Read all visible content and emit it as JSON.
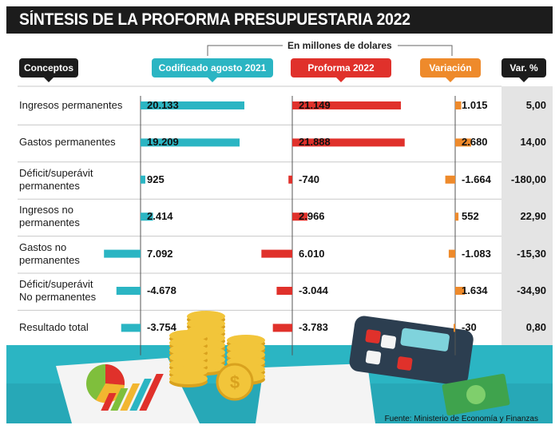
{
  "title": "SÍNTESIS DE LA PROFORMA PRESUPUESTARIA 2022",
  "subtitle": "En millones de dolares",
  "headers": {
    "concepts": "Conceptos",
    "codificado": "Codificado agosto 2021",
    "proforma": "Proforma 2022",
    "variacion": "Variación",
    "var_pct": "Var. %"
  },
  "colors": {
    "codificado": "#2bb5c3",
    "proforma": "#e0312b",
    "variacion": "#ee8a2b",
    "dark": "#1c1c1c",
    "pct_bg": "#e4e4e4",
    "illustration_bg": "#2bb5c3"
  },
  "source": "Fuente: Ministerio de Economía y Finanzas",
  "chart_data": {
    "type": "bar",
    "categories": [
      "Ingresos permanentes",
      "Gastos permanentes",
      "Déficit/superávit permanentes",
      "Ingresos no permanentes",
      "Gastos no permanentes",
      "Déficit/superávit No permanentes",
      "Resultado total"
    ],
    "category_lines": [
      [
        "Ingresos permanentes"
      ],
      [
        "Gastos permanentes"
      ],
      [
        "Déficit/superávit",
        "permanentes"
      ],
      [
        "Ingresos no",
        "permanentes"
      ],
      [
        "Gastos no",
        "permanentes"
      ],
      [
        "Déficit/superávit",
        "No permanentes"
      ],
      [
        "Resultado total"
      ]
    ],
    "series": [
      {
        "name": "Codificado agosto 2021",
        "values": [
          20133,
          19209,
          925,
          2414,
          -7092,
          -4678,
          -3754
        ],
        "labels": [
          "20.133",
          "19.209",
          "925",
          "2.414",
          "7.092",
          "-4.678",
          "-3.754"
        ]
      },
      {
        "name": "Proforma 2022",
        "values": [
          21149,
          21888,
          -740,
          2966,
          -6010,
          -3044,
          -3783
        ],
        "labels": [
          "21.149",
          "21.888",
          "-740",
          "2.966",
          "6.010",
          "-3.044",
          "-3.783"
        ]
      },
      {
        "name": "Variación",
        "values": [
          1015,
          2680,
          -1664,
          552,
          -1083,
          1634,
          -30
        ],
        "labels": [
          "1.015",
          "2.680",
          "-1.664",
          "552",
          "-1.083",
          "1.634",
          "-30"
        ]
      }
    ],
    "var_pct": [
      "5,00",
      "14,00",
      "-180,00",
      "22,90",
      "-15,30",
      "-34,90",
      "0,80"
    ]
  }
}
